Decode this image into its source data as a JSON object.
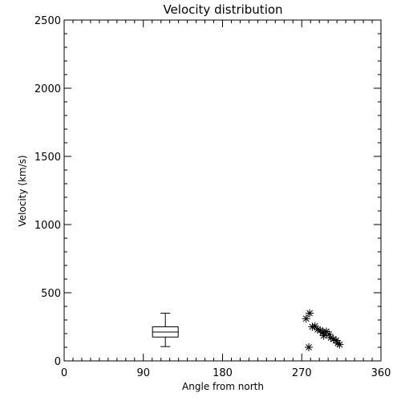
{
  "chart_data": {
    "type": "scatter",
    "title": "Velocity distribution",
    "xlabel": "Angle from north",
    "ylabel": "Velocity (km/s)",
    "xlim": [
      0,
      360
    ],
    "ylim": [
      0,
      2500
    ],
    "x_ticks": [
      0,
      90,
      180,
      270,
      360
    ],
    "y_ticks": [
      0,
      500,
      1000,
      1500,
      2000,
      2500
    ],
    "x_minor_step": 10,
    "y_minor_step": 100,
    "grid": false,
    "boxplot": {
      "x": 115,
      "min": 105,
      "q1": 175,
      "median": 212,
      "q3": 250,
      "max": 350
    },
    "points": [
      {
        "x": 275,
        "y": 310
      },
      {
        "x": 279,
        "y": 350
      },
      {
        "x": 278,
        "y": 100
      },
      {
        "x": 282,
        "y": 250
      },
      {
        "x": 285,
        "y": 255
      },
      {
        "x": 288,
        "y": 230
      },
      {
        "x": 291,
        "y": 225
      },
      {
        "x": 294,
        "y": 210
      },
      {
        "x": 295,
        "y": 185
      },
      {
        "x": 298,
        "y": 215
      },
      {
        "x": 301,
        "y": 195
      },
      {
        "x": 303,
        "y": 170
      },
      {
        "x": 306,
        "y": 160
      },
      {
        "x": 309,
        "y": 150
      },
      {
        "x": 311,
        "y": 130
      },
      {
        "x": 313,
        "y": 120
      }
    ]
  }
}
